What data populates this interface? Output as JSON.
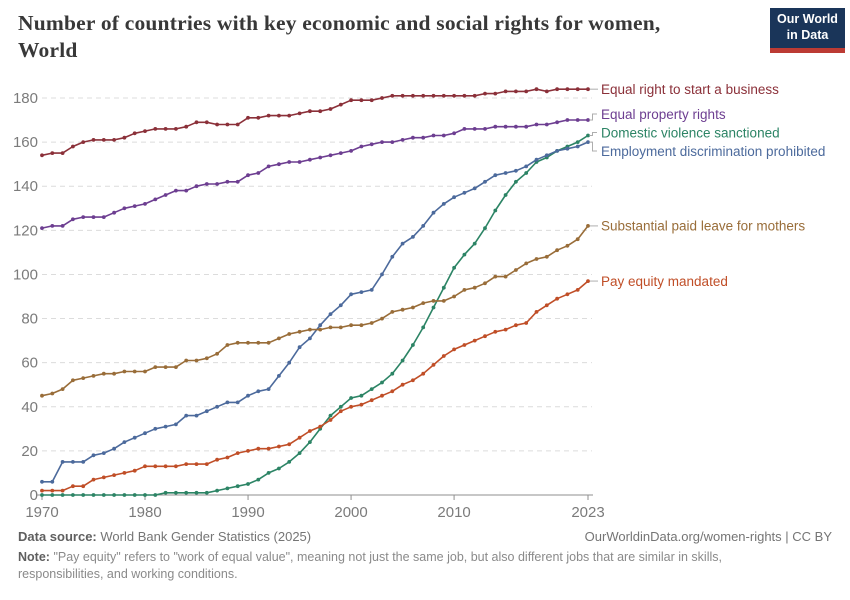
{
  "header": {
    "title_line1": "Number of countries with key economic and social rights for women,",
    "title_line2": "World",
    "logo": {
      "line1": "Our World",
      "line2": "in Data",
      "bg_color": "#1A3559",
      "accent_color": "#BC3B34"
    }
  },
  "chart_data": {
    "type": "line",
    "title": "Number of countries with key economic and social rights for women, World",
    "xlabel": "",
    "ylabel": "",
    "ylim": [
      0,
      180
    ],
    "yticks": [
      0,
      20,
      40,
      60,
      80,
      100,
      120,
      140,
      160,
      180
    ],
    "xticks": [
      1970,
      1980,
      1990,
      2000,
      2010,
      2023
    ],
    "grid": "horizontal-dashed",
    "legend_position": "right",
    "x": [
      1970,
      1971,
      1972,
      1973,
      1974,
      1975,
      1976,
      1977,
      1978,
      1979,
      1980,
      1981,
      1982,
      1983,
      1984,
      1985,
      1986,
      1987,
      1988,
      1989,
      1990,
      1991,
      1992,
      1993,
      1994,
      1995,
      1996,
      1997,
      1998,
      1999,
      2000,
      2001,
      2002,
      2003,
      2004,
      2005,
      2006,
      2007,
      2008,
      2009,
      2010,
      2011,
      2012,
      2013,
      2014,
      2015,
      2016,
      2017,
      2018,
      2019,
      2020,
      2021,
      2022,
      2023
    ],
    "series": [
      {
        "name": "Equal right to start a business",
        "color": "#8B3039",
        "values": [
          154,
          155,
          155,
          158,
          160,
          161,
          161,
          161,
          162,
          164,
          165,
          166,
          166,
          166,
          167,
          169,
          169,
          168,
          168,
          168,
          171,
          171,
          172,
          172,
          172,
          173,
          174,
          174,
          175,
          177,
          179,
          179,
          179,
          180,
          181,
          181,
          181,
          181,
          181,
          181,
          181,
          181,
          181,
          182,
          182,
          183,
          183,
          183,
          184,
          183,
          184,
          184,
          184,
          184
        ]
      },
      {
        "name": "Equal property rights",
        "color": "#6D3E91",
        "values": [
          121,
          122,
          122,
          125,
          126,
          126,
          126,
          128,
          130,
          131,
          132,
          134,
          136,
          138,
          138,
          140,
          141,
          141,
          142,
          142,
          145,
          146,
          149,
          150,
          151,
          151,
          152,
          153,
          154,
          155,
          156,
          158,
          159,
          160,
          160,
          161,
          162,
          162,
          163,
          163,
          164,
          166,
          166,
          166,
          167,
          167,
          167,
          167,
          168,
          168,
          169,
          170,
          170,
          170
        ]
      },
      {
        "name": "Domestic violence sanctioned",
        "color": "#2C8465",
        "values": [
          0,
          0,
          0,
          0,
          0,
          0,
          0,
          0,
          0,
          0,
          0,
          0,
          1,
          1,
          1,
          1,
          1,
          2,
          3,
          4,
          5,
          7,
          10,
          12,
          15,
          19,
          24,
          30,
          36,
          40,
          44,
          45,
          48,
          51,
          55,
          61,
          68,
          76,
          85,
          94,
          103,
          109,
          114,
          121,
          129,
          136,
          142,
          146,
          151,
          153,
          156,
          158,
          160,
          163
        ]
      },
      {
        "name": "Employment discrimination prohibited",
        "color": "#4C6A9C",
        "values": [
          6,
          6,
          15,
          15,
          15,
          18,
          19,
          21,
          24,
          26,
          28,
          30,
          31,
          32,
          36,
          36,
          38,
          40,
          42,
          42,
          45,
          47,
          48,
          54,
          60,
          67,
          71,
          77,
          82,
          86,
          91,
          92,
          93,
          100,
          108,
          114,
          117,
          122,
          128,
          132,
          135,
          137,
          139,
          142,
          145,
          146,
          147,
          149,
          152,
          154,
          156,
          157,
          158,
          160
        ]
      },
      {
        "name": "Substantial paid leave for mothers",
        "color": "#996D39",
        "values": [
          45,
          46,
          48,
          52,
          53,
          54,
          55,
          55,
          56,
          56,
          56,
          58,
          58,
          58,
          61,
          61,
          62,
          64,
          68,
          69,
          69,
          69,
          69,
          71,
          73,
          74,
          75,
          75,
          76,
          76,
          77,
          77,
          78,
          80,
          83,
          84,
          85,
          87,
          88,
          88,
          90,
          93,
          94,
          96,
          99,
          99,
          102,
          105,
          107,
          108,
          111,
          113,
          116,
          122
        ]
      },
      {
        "name": "Pay equity mandated",
        "color": "#C04E27",
        "values": [
          2,
          2,
          2,
          4,
          4,
          7,
          8,
          9,
          10,
          11,
          13,
          13,
          13,
          13,
          14,
          14,
          14,
          16,
          17,
          19,
          20,
          21,
          21,
          22,
          23,
          26,
          29,
          31,
          34,
          38,
          40,
          41,
          43,
          45,
          47,
          50,
          52,
          55,
          59,
          63,
          66,
          68,
          70,
          72,
          74,
          75,
          77,
          78,
          83,
          86,
          89,
          91,
          93,
          97
        ]
      }
    ]
  },
  "footer": {
    "data_source_label": "Data source:",
    "data_source_value": "World Bank Gender Statistics (2025)",
    "link_text": "OurWorldinData.org/women-rights | CC BY",
    "note_label": "Note:",
    "note_text": "\"Pay equity\" refers to \"work of equal value\", meaning not just the same job, but also different jobs that are similar in skills, responsibilities, and working conditions."
  }
}
